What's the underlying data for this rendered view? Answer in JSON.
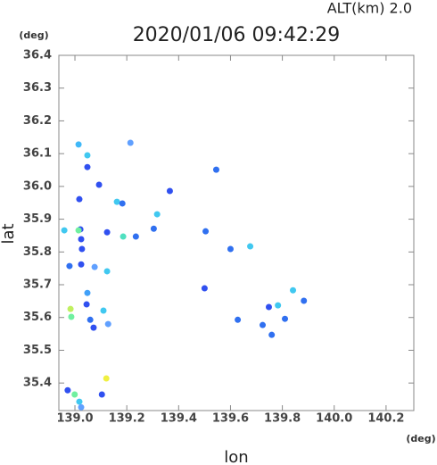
{
  "chart_data": {
    "type": "scatter",
    "title": "2020/01/06 09:42:29",
    "subtitle": "ALT(km) 2.0",
    "x_unit": "(deg)",
    "y_unit": "(deg)",
    "x_label": "lon",
    "y_label": "lat",
    "xlim": [
      138.938,
      140.307
    ],
    "ylim": [
      35.316,
      36.4
    ],
    "xticks": [
      {
        "value": 139,
        "label": "139.0"
      },
      139.2,
      139.4,
      139.6,
      139.8,
      {
        "value": 140,
        "label": "140.0"
      },
      140.2
    ],
    "yticks": [
      35.4,
      35.5,
      35.6,
      35.7,
      35.8,
      35.9,
      {
        "value": 36,
        "label": "36.0"
      },
      36.1,
      36.2,
      36.3,
      36.4
    ],
    "x": [
      139.014,
      139.048,
      139.048,
      139.017,
      139.093,
      139.162,
      139.183,
      139.317,
      139.366,
      139.304,
      139.235,
      139.186,
      139.124,
      139.021,
      138.959,
      139.014,
      139.024,
      139.027,
      138.979,
      139.024,
      139.076,
      139.124,
      139.048,
      139.045,
      138.983,
      138.986,
      139.059,
      139.072,
      139.11,
      139.128,
      139.121,
      139.104,
      138.972,
      138.999,
      139.017,
      139.024,
      139.504,
      139.5,
      139.6,
      139.676,
      139.628,
      139.748,
      139.783,
      139.81,
      139.724,
      139.759,
      139.841,
      139.883,
      139.545,
      139.214
    ],
    "y": [
      36.128,
      36.095,
      36.059,
      35.961,
      36.005,
      35.953,
      35.948,
      35.915,
      35.986,
      35.871,
      35.847,
      35.847,
      35.86,
      35.869,
      35.866,
      35.866,
      35.839,
      35.809,
      35.757,
      35.762,
      35.754,
      35.741,
      35.675,
      35.64,
      35.626,
      35.602,
      35.593,
      35.569,
      35.621,
      35.58,
      35.414,
      35.365,
      35.378,
      35.365,
      35.343,
      35.326,
      35.863,
      35.689,
      35.809,
      35.817,
      35.593,
      35.632,
      35.637,
      35.596,
      35.577,
      35.547,
      35.683,
      35.651,
      36.051,
      36.133
    ],
    "colors": [
      "#40b8f8",
      "#40c8f0",
      "#3050f0",
      "#3050f0",
      "#3050f0",
      "#40c8f0",
      "#3070f0",
      "#40c8f0",
      "#3050f0",
      "#3070f0",
      "#3070f0",
      "#50e0c0",
      "#3050f0",
      "#3050f0",
      "#40c8f0",
      "#70f0a0",
      "#3050f0",
      "#3050f0",
      "#3070f0",
      "#3050f0",
      "#60a0ff",
      "#40c8f0",
      "#40a0f8",
      "#3050f0",
      "#c0f060",
      "#70f0a0",
      "#3070f0",
      "#3050f0",
      "#40c8f0",
      "#60a0ff",
      "#f0f040",
      "#3050f0",
      "#3050f0",
      "#70f0a0",
      "#40c8f0",
      "#60a0ff",
      "#3070f0",
      "#3050f0",
      "#3070f0",
      "#40c8f0",
      "#3070f0",
      "#3050f0",
      "#40c8f0",
      "#3070f0",
      "#3070f0",
      "#3070f0",
      "#40c8f0",
      "#3070f0",
      "#3070f0",
      "#60a0ff"
    ]
  }
}
